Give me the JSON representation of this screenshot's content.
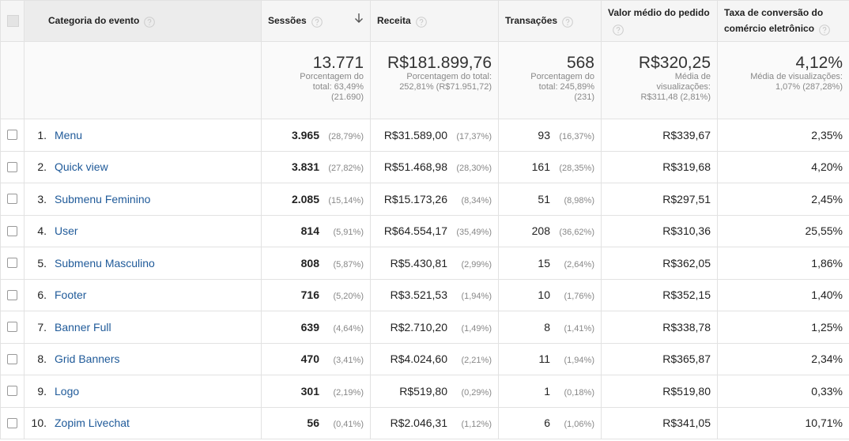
{
  "header": {
    "columns": [
      "Categoria do evento",
      "Sessões",
      "Receita",
      "Transações",
      "Valor médio do pedido",
      "Taxa de conversão do comércio eletrônico"
    ]
  },
  "totals": [
    {
      "value": "13.771",
      "note": "Porcentagem do total: 63,49% (21.690)"
    },
    {
      "value": "R$181.899,76",
      "note": "Porcentagem do total: 252,81% (R$71.951,72)"
    },
    {
      "value": "568",
      "note": "Porcentagem do total: 245,89% (231)"
    },
    {
      "value": "R$320,25",
      "note": "Média de visualizações: R$311,48 (2,81%)"
    },
    {
      "value": "4,12%",
      "note": "Média de visualizações: 1,07% (287,28%)"
    }
  ],
  "rows": [
    {
      "rank": "1.",
      "category": "Menu",
      "sessions": "3.965",
      "sessions_share": "(28,79%)",
      "revenue": "R$31.589,00",
      "revenue_share": "(17,37%)",
      "transactions": "93",
      "transactions_share": "(16,37%)",
      "avg_order": "R$339,67",
      "conversion": "2,35%"
    },
    {
      "rank": "2.",
      "category": "Quick view",
      "sessions": "3.831",
      "sessions_share": "(27,82%)",
      "revenue": "R$51.468,98",
      "revenue_share": "(28,30%)",
      "transactions": "161",
      "transactions_share": "(28,35%)",
      "avg_order": "R$319,68",
      "conversion": "4,20%"
    },
    {
      "rank": "3.",
      "category": "Submenu Feminino",
      "sessions": "2.085",
      "sessions_share": "(15,14%)",
      "revenue": "R$15.173,26",
      "revenue_share": "(8,34%)",
      "transactions": "51",
      "transactions_share": "(8,98%)",
      "avg_order": "R$297,51",
      "conversion": "2,45%"
    },
    {
      "rank": "4.",
      "category": "User",
      "sessions": "814",
      "sessions_share": "(5,91%)",
      "revenue": "R$64.554,17",
      "revenue_share": "(35,49%)",
      "transactions": "208",
      "transactions_share": "(36,62%)",
      "avg_order": "R$310,36",
      "conversion": "25,55%"
    },
    {
      "rank": "5.",
      "category": "Submenu Masculino",
      "sessions": "808",
      "sessions_share": "(5,87%)",
      "revenue": "R$5.430,81",
      "revenue_share": "(2,99%)",
      "transactions": "15",
      "transactions_share": "(2,64%)",
      "avg_order": "R$362,05",
      "conversion": "1,86%"
    },
    {
      "rank": "6.",
      "category": "Footer",
      "sessions": "716",
      "sessions_share": "(5,20%)",
      "revenue": "R$3.521,53",
      "revenue_share": "(1,94%)",
      "transactions": "10",
      "transactions_share": "(1,76%)",
      "avg_order": "R$352,15",
      "conversion": "1,40%"
    },
    {
      "rank": "7.",
      "category": "Banner Full",
      "sessions": "639",
      "sessions_share": "(4,64%)",
      "revenue": "R$2.710,20",
      "revenue_share": "(1,49%)",
      "transactions": "8",
      "transactions_share": "(1,41%)",
      "avg_order": "R$338,78",
      "conversion": "1,25%"
    },
    {
      "rank": "8.",
      "category": "Grid Banners",
      "sessions": "470",
      "sessions_share": "(3,41%)",
      "revenue": "R$4.024,60",
      "revenue_share": "(2,21%)",
      "transactions": "11",
      "transactions_share": "(1,94%)",
      "avg_order": "R$365,87",
      "conversion": "2,34%"
    },
    {
      "rank": "9.",
      "category": "Logo",
      "sessions": "301",
      "sessions_share": "(2,19%)",
      "revenue": "R$519,80",
      "revenue_share": "(0,29%)",
      "transactions": "1",
      "transactions_share": "(0,18%)",
      "avg_order": "R$519,80",
      "conversion": "0,33%"
    },
    {
      "rank": "10.",
      "category": "Zopim Livechat",
      "sessions": "56",
      "sessions_share": "(0,41%)",
      "revenue": "R$2.046,31",
      "revenue_share": "(1,12%)",
      "transactions": "6",
      "transactions_share": "(1,06%)",
      "avg_order": "R$341,05",
      "conversion": "10,71%"
    }
  ]
}
